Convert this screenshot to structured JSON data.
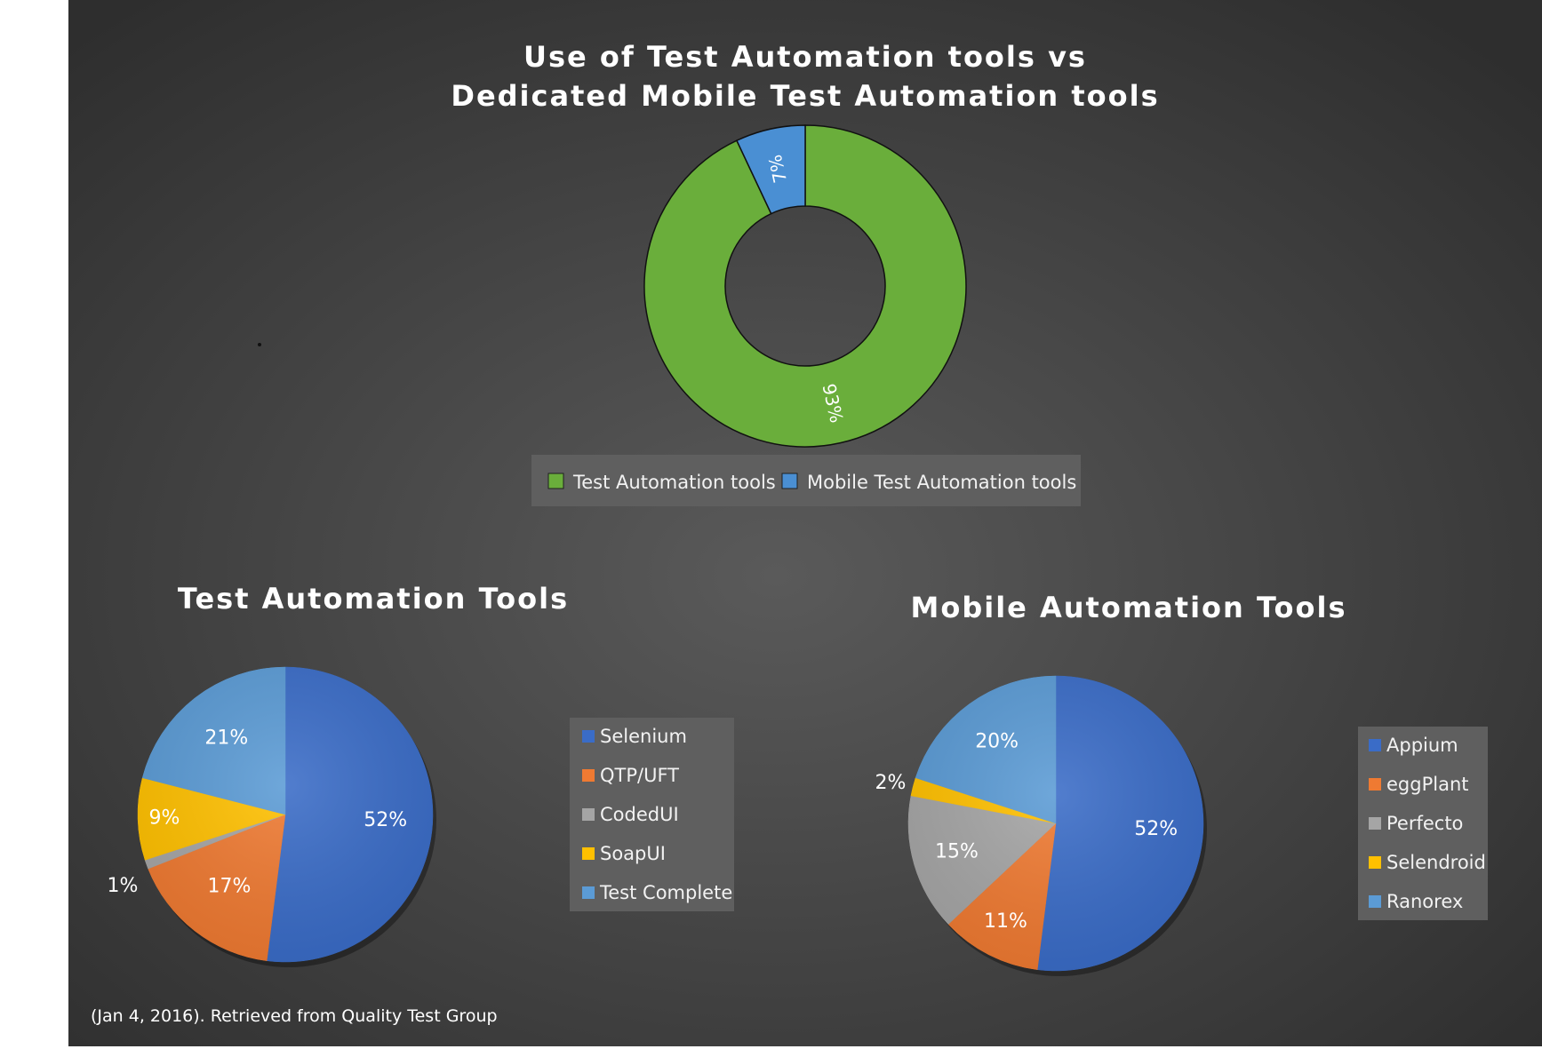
{
  "colors": {
    "background_center": "#5a5a5a",
    "background_edge": "#2e2e2e",
    "legend_box": "#5f5f5f"
  },
  "source_note": "(Jan 4, 2016). Retrieved from Quality Test Group",
  "chart_data": [
    {
      "type": "doughnut",
      "title_lines": [
        "Use of Test Automation tools vs",
        "Dedicated Mobile Test Automation tools"
      ],
      "categories": [
        "Test Automation tools",
        "Mobile Test Automation tools"
      ],
      "values": [
        93,
        7
      ],
      "labels": [
        "93%",
        "7%"
      ],
      "colors": [
        "#6aae3b",
        "#4a8fd3"
      ],
      "legend_position": "bottom"
    },
    {
      "type": "pie",
      "title_lines": [
        "Test Automation Tools"
      ],
      "categories": [
        "Selenium",
        "QTP/UFT",
        "CodedUI",
        "SoapUI",
        "Test Complete"
      ],
      "values": [
        52,
        17,
        1,
        9,
        21
      ],
      "labels": [
        "52%",
        "17%",
        "1%",
        "9%",
        "21%"
      ],
      "colors": [
        "#3a6cc7",
        "#ef7a32",
        "#a5a5a5",
        "#ffc000",
        "#5b9bd5"
      ],
      "legend_position": "right"
    },
    {
      "type": "pie",
      "title_lines": [
        "Mobile Automation Tools"
      ],
      "categories": [
        "Appium",
        "eggPlant",
        "Perfecto",
        "Selendroid",
        "Ranorex"
      ],
      "values": [
        52,
        11,
        15,
        2,
        20
      ],
      "labels": [
        "52%",
        "11%",
        "15%",
        "2%",
        "20%"
      ],
      "colors": [
        "#3a6cc7",
        "#ef7a32",
        "#a5a5a5",
        "#ffc000",
        "#5b9bd5"
      ],
      "legend_position": "right"
    }
  ]
}
